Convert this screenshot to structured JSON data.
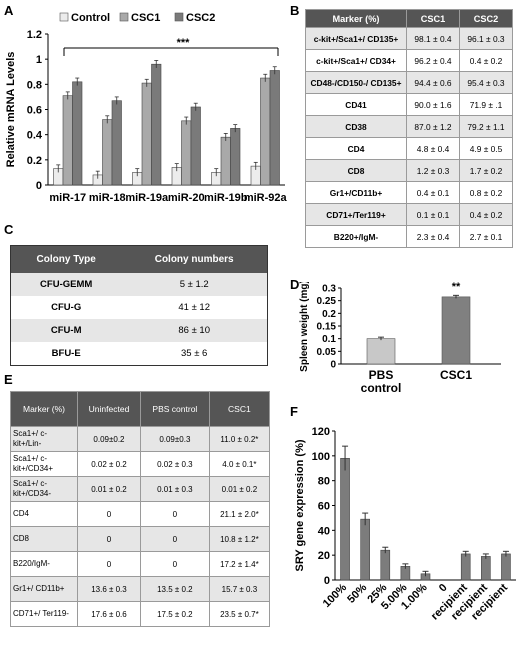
{
  "panels": {
    "a": "A",
    "b": "B",
    "c": "C",
    "d": "D",
    "e": "E",
    "f": "F"
  },
  "chart_data": [
    {
      "type": "bar",
      "title": "",
      "ylabel": "Relative mRNA Levels",
      "ylim": [
        0,
        1.2
      ],
      "yticks": [
        "0",
        "0.2",
        "0.4",
        "0.6",
        "0.8",
        "1",
        "1.2"
      ],
      "categories": [
        "miR-17",
        "miR-18",
        "miR-19a",
        "miR-20",
        "miR-19b",
        "miR-92a"
      ],
      "series": [
        {
          "name": "Control",
          "color": "#ececec",
          "values": [
            0.13,
            0.08,
            0.1,
            0.14,
            0.1,
            0.15
          ]
        },
        {
          "name": "CSC1",
          "color": "#a9a9a9",
          "values": [
            0.71,
            0.52,
            0.81,
            0.51,
            0.38,
            0.85
          ]
        },
        {
          "name": "CSC2",
          "color": "#7a7a7a",
          "values": [
            0.82,
            0.67,
            0.96,
            0.62,
            0.45,
            0.91
          ]
        }
      ],
      "annotation": "***",
      "legend": "top"
    },
    {
      "type": "bar",
      "ylabel": "Spleen weight (mg)",
      "ylim": [
        0,
        0.3
      ],
      "yticks": [
        "0",
        "0.05",
        "0.1",
        "0.15",
        "0.2",
        "0.25",
        "0.3"
      ],
      "categories": [
        "PBS control",
        "CSC1"
      ],
      "category_lines": [
        [
          "PBS",
          "control"
        ],
        [
          "CSC1"
        ]
      ],
      "values": [
        0.1,
        0.265
      ],
      "colors": [
        "#c8c8c8",
        "#808080"
      ],
      "annotation": "**"
    },
    {
      "type": "bar",
      "ylabel": "SRY gene expression (%)",
      "ylim": [
        0,
        120
      ],
      "yticks": [
        "0",
        "20",
        "40",
        "60",
        "80",
        "100",
        "120"
      ],
      "categories": [
        "100%",
        "50%",
        "25%",
        "5.00%",
        "1.00%",
        "0",
        "recipient",
        "recipient",
        "recipient"
      ],
      "values": [
        98,
        49,
        24,
        11,
        5,
        0,
        21,
        19,
        21
      ],
      "color": "#7c7c7c"
    },
    {
      "type": "table",
      "id": "B",
      "header": [
        "Marker (%)",
        "CSC1",
        "CSC2"
      ],
      "rows": [
        [
          "c-kit+/Sca1+/ CD135+",
          "98.1 ± 0.4",
          "96.1 ± 0.3"
        ],
        [
          "c-kit+/Sca1+/ CD34+",
          "96.2 ± 0.4",
          "0.4 ± 0.2"
        ],
        [
          "CD48-/CD150-/ CD135+",
          "94.4 ± 0.6",
          "95.4 ± 0.3"
        ],
        [
          "CD41",
          "90.0 ± 1.6",
          "71.9 ± .1"
        ],
        [
          "CD38",
          "87.0 ± 1.2",
          "79.2 ± 1.1"
        ],
        [
          "CD4",
          "4.8 ± 0.4",
          "4.9 ± 0.5"
        ],
        [
          "CD8",
          "1.2 ± 0.3",
          "1.7 ± 0.2"
        ],
        [
          "Gr1+/CD11b+",
          "0.4 ± 0.1",
          "0.8 ± 0.2"
        ],
        [
          "CD71+/Ter119+",
          "0.1 ± 0.1",
          "0.4 ± 0.2"
        ],
        [
          "B220+/IgM-",
          "2.3 ± 0.4",
          "2.7 ± 0.1"
        ]
      ]
    },
    {
      "type": "table",
      "id": "C",
      "header": [
        "Colony Type",
        "Colony numbers"
      ],
      "rows": [
        [
          "CFU-GEMM",
          "5 ± 1.2"
        ],
        [
          "CFU-G",
          "41 ± 12"
        ],
        [
          "CFU-M",
          "86 ± 10"
        ],
        [
          "BFU-E",
          "35 ± 6"
        ]
      ]
    },
    {
      "type": "table",
      "id": "E",
      "header": [
        "Marker (%)",
        "Uninfected",
        "PBS control",
        "CSC1"
      ],
      "rows": [
        [
          "Sca1+/ c-kit+/Lin-",
          "0.09±0.2",
          "0.09±0.3",
          "11.0 ± 0.2*"
        ],
        [
          "Sca1+/ c-kit+/CD34+",
          "0.02 ± 0.2",
          "0.02 ± 0.3",
          "4.0 ± 0.1*"
        ],
        [
          "Sca1+/ c-kit+/CD34-",
          "0.01 ± 0.2",
          "0.01 ± 0.3",
          "0.01 ± 0.2"
        ],
        [
          "CD4",
          "0",
          "0",
          "21.1 ± 2.0*"
        ],
        [
          "CD8",
          "0",
          "0",
          "10.8 ± 1.2*"
        ],
        [
          "B220/IgM-",
          "0",
          "0",
          "17.2 ± 1.4*"
        ],
        [
          "Gr1+/ CD11b+",
          "13.6 ± 0.3",
          "13.5 ± 0.2",
          "15.7 ± 0.3"
        ],
        [
          "CD71+/ Ter119-",
          "17.6 ± 0.6",
          "17.5 ± 0.2",
          "23.5 ± 0.7*"
        ]
      ]
    }
  ]
}
